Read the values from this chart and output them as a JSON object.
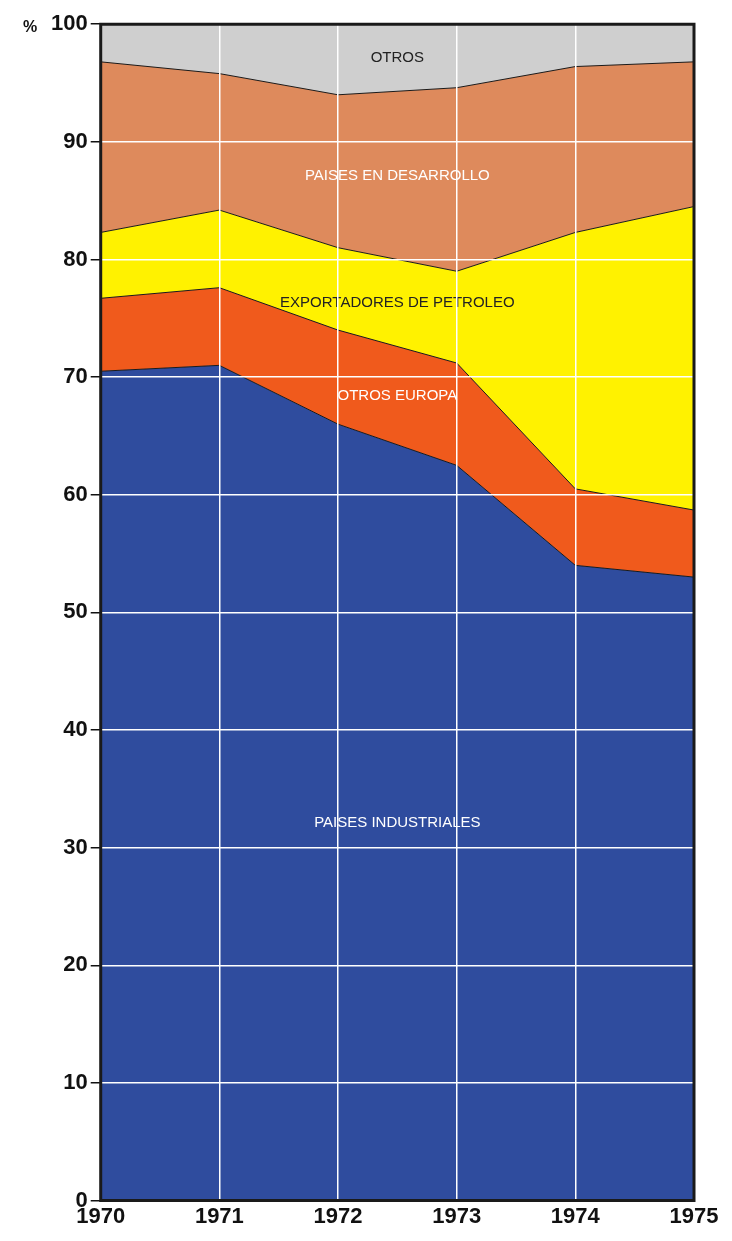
{
  "chart_data": {
    "type": "area",
    "stacked": true,
    "ylabel": "%",
    "x": [
      1970,
      1971,
      1972,
      1973,
      1974,
      1975
    ],
    "xlim": [
      1970,
      1975
    ],
    "xticks": [
      1970,
      1971,
      1972,
      1973,
      1974,
      1975
    ],
    "ylim": [
      0,
      100
    ],
    "yticks": [
      0,
      10,
      20,
      30,
      40,
      50,
      60,
      70,
      80,
      90,
      100
    ],
    "grid": true,
    "legend": false,
    "series": [
      {
        "name": "PAISES INDUSTRIALES",
        "color": "#2f4c9e",
        "values": [
          70.5,
          71,
          66,
          62.5,
          54,
          53
        ]
      },
      {
        "name": "OTROS EUROPA",
        "color": "#f05a1c",
        "values": [
          6.2,
          6.6,
          8,
          8.7,
          6.5,
          5.7
        ]
      },
      {
        "name": "EXPORTADORES DE PETROLEO",
        "color": "#fff200",
        "values": [
          5.6,
          6.6,
          7,
          7.8,
          21.8,
          25.8
        ]
      },
      {
        "name": "PAISES EN DESARROLLO",
        "color": "#de8a5c",
        "values": [
          14.5,
          11.6,
          13,
          15.6,
          14.1,
          12.3
        ]
      },
      {
        "name": "OTROS",
        "color": "#cfcfcf",
        "values": [
          3.2,
          4.2,
          6,
          5.4,
          3.6,
          3.2
        ]
      }
    ]
  }
}
